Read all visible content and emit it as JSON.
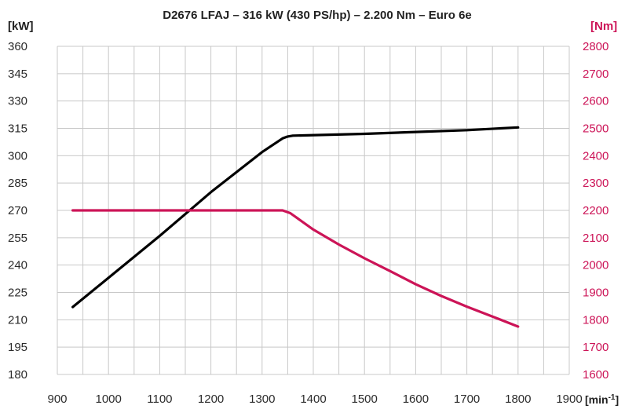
{
  "colors": {
    "power": "#000000",
    "torque": "#cc1457",
    "grid": "#c8c8c8",
    "text": "#2b2b2b"
  },
  "chart_data": {
    "type": "line",
    "title": "D2676 LFAJ – 316 kW (430 PS/hp) – 2.200 Nm – Euro 6e",
    "xlabel_unit": "[min",
    "xlabel_unit_sup": "-1",
    "xlabel_unit_close": "]",
    "y_left_unit": "[kW]",
    "y_right_unit": "[Nm]",
    "xlim": [
      900,
      1900
    ],
    "x_ticks": [
      "900",
      "1000",
      "1100",
      "1200",
      "1300",
      "1400",
      "1500",
      "1600",
      "1700",
      "1800",
      "1900"
    ],
    "y_left_lim": [
      180,
      360
    ],
    "y_left_ticks": [
      "180",
      "195",
      "210",
      "225",
      "240",
      "255",
      "270",
      "285",
      "300",
      "315",
      "330",
      "345",
      "360"
    ],
    "y_right_lim": [
      1600,
      2800
    ],
    "y_right_ticks": [
      "1600",
      "1700",
      "1800",
      "1900",
      "2000",
      "2100",
      "2200",
      "2300",
      "2400",
      "2500",
      "2600",
      "2700",
      "2800"
    ],
    "grid": true,
    "series": [
      {
        "axis": "left",
        "color": "#000000",
        "points": [
          [
            930,
            217
          ],
          [
            1000,
            233
          ],
          [
            1100,
            256
          ],
          [
            1200,
            280
          ],
          [
            1300,
            302
          ],
          [
            1340,
            309.5
          ],
          [
            1350,
            310.5
          ],
          [
            1360,
            311
          ],
          [
            1500,
            312
          ],
          [
            1600,
            313
          ],
          [
            1700,
            314
          ],
          [
            1800,
            315.5
          ]
        ]
      },
      {
        "axis": "right",
        "color": "#cc1457",
        "points": [
          [
            930,
            2200
          ],
          [
            1000,
            2200
          ],
          [
            1100,
            2200
          ],
          [
            1200,
            2200
          ],
          [
            1300,
            2200
          ],
          [
            1340,
            2200
          ],
          [
            1355,
            2190
          ],
          [
            1400,
            2130
          ],
          [
            1450,
            2075
          ],
          [
            1500,
            2025
          ],
          [
            1550,
            1978
          ],
          [
            1600,
            1930
          ],
          [
            1650,
            1887
          ],
          [
            1700,
            1848
          ],
          [
            1750,
            1812
          ],
          [
            1800,
            1775
          ]
        ]
      }
    ]
  }
}
